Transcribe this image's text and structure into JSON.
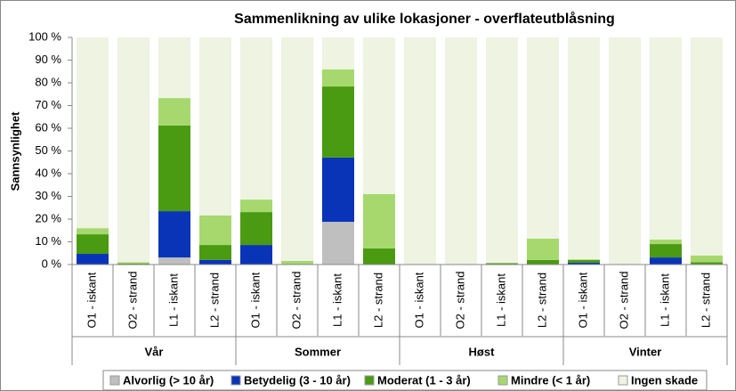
{
  "chart_data": {
    "type": "stacked-bar",
    "title": "Sammenlikning av ulike lokasjoner - overflateutblåsning",
    "y_label": "Sannsynlighet",
    "categories": [
      "O1 - iskant",
      "O2 - strand",
      "L1 - iskant",
      "L2 - strand",
      "O1 - iskant",
      "O2 - strand",
      "L1 - iskant",
      "L2 - strand",
      "O1 - iskant",
      "O2 - strand",
      "L1 - iskant",
      "L2 - strand",
      "O1 - iskant",
      "O2 - strand",
      "L1 - iskant",
      "L2 - strand"
    ],
    "groups": [
      "Vår",
      "Sommer",
      "Høst",
      "Vinter"
    ],
    "series": [
      {
        "name": "Alvorlig (> 10 år)",
        "color": "#bfbfbf",
        "values": [
          0,
          0,
          3.1,
          0,
          0,
          0,
          18.8,
          0,
          0,
          0,
          0,
          0,
          0,
          0,
          0,
          0
        ]
      },
      {
        "name": "Betydelig (3 - 10 år)",
        "color": "#0a34b8",
        "values": [
          4.7,
          0,
          20.4,
          2,
          8.6,
          0,
          28.3,
          0,
          0,
          0,
          0,
          0,
          0.8,
          0,
          3.1,
          0
        ]
      },
      {
        "name": "Moderat (1 - 3 år)",
        "color": "#4a9a12",
        "values": [
          8.6,
          0.5,
          37.7,
          6.6,
          14.5,
          0.3,
          31.3,
          7.1,
          0,
          0,
          0.6,
          2,
          1.2,
          0,
          5.9,
          1
        ]
      },
      {
        "name": "Mindre (< 1 år)",
        "color": "#a6d86e",
        "values": [
          2.7,
          0.5,
          12.1,
          13,
          5.5,
          1.3,
          7.5,
          23.9,
          0,
          0,
          0,
          9.4,
          0.3,
          0,
          2,
          3
        ]
      },
      {
        "name": "Ingen skade",
        "color": "#eef3e2",
        "values": [
          84,
          99,
          26.7,
          78.4,
          71.4,
          98.4,
          14.1,
          69,
          100,
          100,
          99.4,
          88.6,
          97.7,
          100,
          89,
          96
        ]
      }
    ],
    "ylim": [
      0,
      100
    ],
    "yticks": [
      {
        "value": 0,
        "label": "0 %"
      },
      {
        "value": 10,
        "label": "10 %"
      },
      {
        "value": 20,
        "label": "20 %"
      },
      {
        "value": 30,
        "label": "30 %"
      },
      {
        "value": 40,
        "label": "40 %"
      },
      {
        "value": 50,
        "label": "50 %"
      },
      {
        "value": 60,
        "label": "60 %"
      },
      {
        "value": 70,
        "label": "70 %"
      },
      {
        "value": 80,
        "label": "80 %"
      },
      {
        "value": 90,
        "label": "90 %"
      },
      {
        "value": 100,
        "label": "100 %"
      }
    ],
    "legend": "bottom"
  }
}
